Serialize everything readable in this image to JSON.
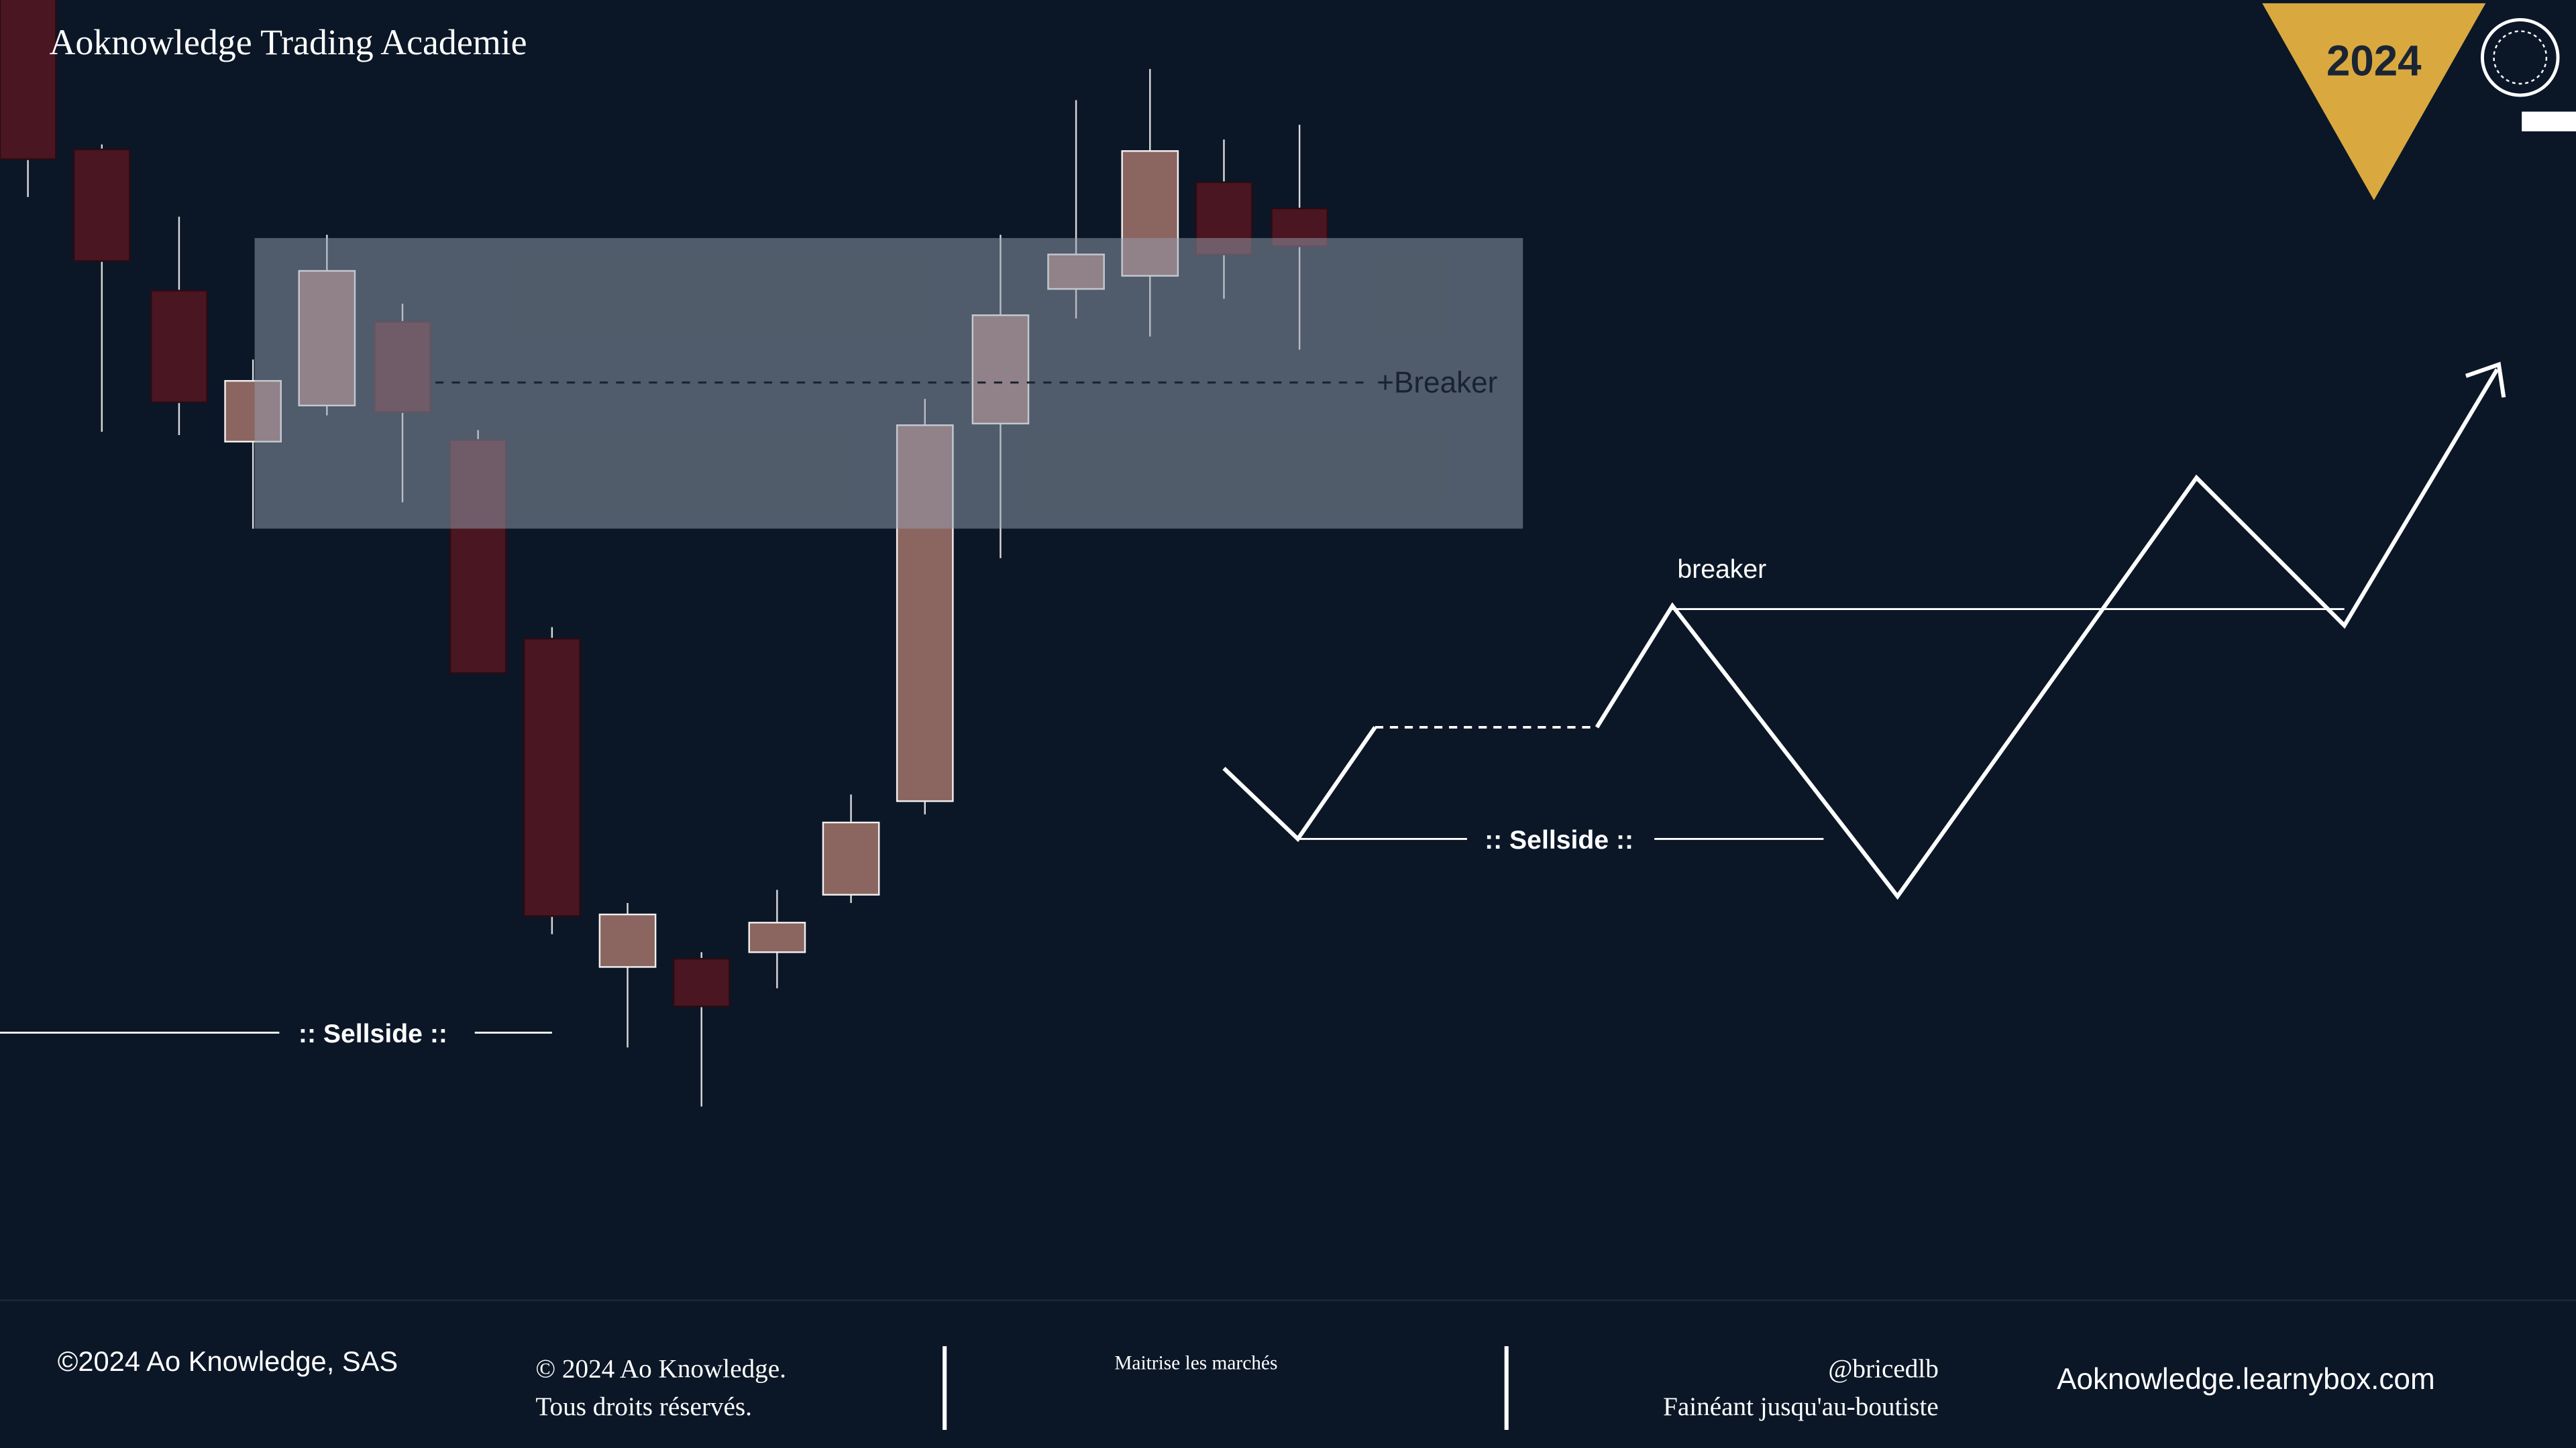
{
  "header": {
    "title": "Aoknowledge Trading Academie",
    "year": "2024"
  },
  "chart": {
    "zone_label": "+Breaker",
    "sellside_label": ":: Sellside ::"
  },
  "diagram": {
    "breaker_label": "breaker",
    "sellside_label": ":: Sellside ::"
  },
  "footer": {
    "company": "©2024 Ao Knowledge, SAS",
    "copyright": [
      "© 2024 Ao Knowledge.",
      "Tous droits réservés."
    ],
    "tagline": "Maitrise les marchés",
    "author": [
      "@bricedlb",
      "Fainéant jusqu'au-boutiste"
    ],
    "website": "Aoknowledge.learnybox.com"
  }
}
